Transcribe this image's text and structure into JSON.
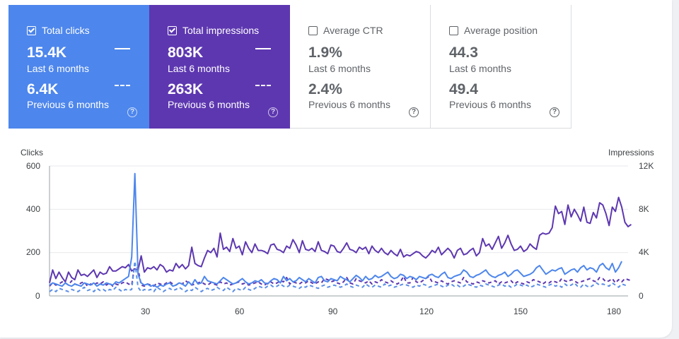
{
  "cards": [
    {
      "label": "Total clicks",
      "checked": true,
      "current": "15.4K",
      "current_period": "Last 6 months",
      "previous": "6.4K",
      "previous_period": "Previous 6 months",
      "help": "?"
    },
    {
      "label": "Total impressions",
      "checked": true,
      "current": "803K",
      "current_period": "Last 6 months",
      "previous": "263K",
      "previous_period": "Previous 6 months",
      "help": "?"
    },
    {
      "label": "Average CTR",
      "checked": false,
      "current": "1.9%",
      "current_period": "Last 6 months",
      "previous": "2.4%",
      "previous_period": "Previous 6 months",
      "help": "?"
    },
    {
      "label": "Average position",
      "checked": false,
      "current": "44.3",
      "current_period": "Last 6 months",
      "previous": "49.4",
      "previous_period": "Previous 6 months",
      "help": "?"
    }
  ],
  "colors": {
    "clicks": "#4d86ec",
    "clicks_prev": "#5b8ee6",
    "impressions": "#5d37b0",
    "impressions_prev": "#5d37b0"
  },
  "chart_data": {
    "type": "line",
    "ylabel_left": "Clicks",
    "ylabel_right": "Impressions",
    "ylim_left": [
      0,
      600
    ],
    "ylim_right": [
      0,
      12000
    ],
    "yticks_left": [
      "0",
      "200",
      "400",
      "600"
    ],
    "yticks_right": [
      "0",
      "4K",
      "8K",
      "12K"
    ],
    "xlim": [
      1,
      184
    ],
    "xticks": [
      "30",
      "60",
      "90",
      "120",
      "150",
      "180"
    ],
    "grid": true,
    "series": [
      {
        "key": "impressions",
        "axis": "right",
        "dashed": false,
        "values": [
          1200,
          2400,
          1600,
          2200,
          1700,
          1300,
          2200,
          1700,
          1500,
          2400,
          1900,
          2000,
          1800,
          2100,
          2400,
          1700,
          2200,
          2000,
          2100,
          2700,
          2300,
          2300,
          2500,
          2700,
          2600,
          2900,
          2300,
          2500,
          2400,
          3700,
          2200,
          2600,
          2500,
          2700,
          2400,
          2900,
          2700,
          2200,
          2400,
          2300,
          3000,
          2600,
          2900,
          2500,
          2800,
          4500,
          3000,
          2800,
          2700,
          3500,
          4200,
          4000,
          4400,
          3600,
          5800,
          4300,
          4500,
          4100,
          5300,
          4400,
          4600,
          3800,
          5000,
          4400,
          4000,
          4800,
          4200,
          4200,
          4100,
          3900,
          4700,
          4800,
          4300,
          4200,
          4000,
          4600,
          4400,
          5200,
          4700,
          4000,
          5100,
          4300,
          4200,
          4400,
          4100,
          5000,
          4200,
          4100,
          3900,
          4700,
          4600,
          4100,
          4000,
          4400,
          4900,
          4300,
          4200,
          4000,
          4500,
          4300,
          4500,
          3900,
          4600,
          4200,
          4000,
          4400,
          4000,
          3800,
          4200,
          3900,
          3700,
          4300,
          3600,
          3800,
          3700,
          3900,
          4100,
          4000,
          3700,
          3500,
          3800,
          4200,
          4000,
          4500,
          3800,
          4100,
          4400,
          4100,
          3500,
          4200,
          4400,
          3800,
          3900,
          4200,
          4400,
          3700,
          4000,
          5300,
          4600,
          4800,
          4300,
          4900,
          5500,
          4400,
          4900,
          5600,
          4800,
          4200,
          4300,
          4600,
          4100,
          4300,
          4800,
          4500,
          4300,
          5600,
          5800,
          5700,
          5800,
          6300,
          8300,
          7600,
          7800,
          6600,
          8400,
          7300,
          8000,
          7500,
          6900,
          8200,
          6800,
          6700,
          7700,
          7200,
          8600,
          8400,
          7600,
          6500,
          8200,
          7800,
          9100,
          8200,
          6800,
          6400,
          6600
        ]
      },
      {
        "key": "impressions_prev",
        "axis": "right",
        "dashed": true,
        "values": [
          900,
          1200,
          1000,
          1100,
          1300,
          1200,
          1000,
          1400,
          1100,
          1000,
          1200,
          1300,
          900,
          1100,
          1000,
          1200,
          1100,
          1300,
          1000,
          1200,
          900,
          1100,
          1000,
          1200,
          1300,
          1100,
          1000,
          3000,
          2500,
          1000,
          900,
          1100,
          1000,
          900,
          1200,
          1100,
          1000,
          1200,
          1300,
          1100,
          1000,
          1200,
          1100,
          1400,
          1200,
          1000,
          1100,
          1200,
          1300,
          1100,
          1000,
          1200,
          1100,
          1000,
          1300,
          1100,
          1200,
          1000,
          1100,
          1200,
          1300,
          1100,
          1200,
          1000,
          1100,
          1200,
          1300,
          1100,
          1000,
          1200,
          1300,
          1100,
          1200,
          1400,
          1300,
          1700,
          1100,
          1300,
          1200,
          1100,
          1300,
          1200,
          1400,
          1200,
          1100,
          1300,
          1200,
          1600,
          1500,
          1300,
          1400,
          1200,
          1100,
          1300,
          1700,
          1200,
          1100,
          1600,
          1400,
          1300,
          1200,
          1400,
          1100,
          1300,
          1200,
          1500,
          1300,
          1200,
          1400,
          1200,
          1100,
          1300,
          1800,
          1200,
          1200,
          1700,
          1300,
          1200,
          1400,
          1600,
          1800,
          1300,
          1300,
          1200,
          1400,
          1200,
          1100,
          1300,
          1400,
          1300,
          1200,
          1700,
          1300,
          1200,
          1100,
          1300,
          1200,
          1400,
          1300,
          1200,
          1300,
          1400,
          1100,
          1300,
          1200,
          1300,
          1400,
          1100,
          1300,
          1200,
          1100,
          1300,
          1200,
          1500,
          1400,
          1300,
          1100,
          1300,
          1200,
          1400,
          1300,
          1200,
          1600,
          1400,
          1300,
          1500,
          1400,
          1200,
          1300,
          1400,
          1500,
          1600,
          1400,
          1300,
          1700,
          1600,
          1300,
          1400,
          1600,
          1200,
          1500,
          1300,
          1600,
          1500,
          1400
        ]
      },
      {
        "key": "clicks_prev",
        "axis": "left",
        "dashed": true,
        "values": [
          20,
          30,
          20,
          35,
          30,
          25,
          20,
          30,
          25,
          20,
          30,
          40,
          25,
          30,
          20,
          35,
          25,
          30,
          20,
          30,
          25,
          40,
          30,
          20,
          30,
          25,
          30,
          160,
          40,
          20,
          30,
          25,
          30,
          20,
          40,
          30,
          20,
          30,
          35,
          25,
          30,
          40,
          30,
          20,
          30,
          25,
          40,
          30,
          20,
          30,
          35,
          25,
          30,
          40,
          30,
          25,
          40,
          30,
          20,
          35,
          30,
          25,
          40,
          30,
          25,
          35,
          45,
          40,
          35,
          45,
          50,
          40,
          45,
          55,
          45,
          40,
          50,
          45,
          40,
          35,
          45,
          40,
          50,
          45,
          40,
          35,
          45,
          50,
          40,
          45,
          50,
          45,
          40,
          45,
          55,
          45,
          40,
          50,
          45,
          40,
          55,
          45,
          40,
          50,
          45,
          40,
          55,
          45,
          50,
          40,
          45,
          50,
          55,
          50,
          45,
          40,
          50,
          45,
          55,
          50,
          40,
          45,
          50,
          55,
          45,
          40,
          50,
          55,
          45,
          50,
          40,
          45,
          55,
          50,
          45,
          40,
          50,
          45,
          55,
          50,
          45,
          40,
          50,
          55,
          45,
          50,
          40,
          45,
          55,
          50,
          45,
          50,
          40,
          45,
          55,
          50,
          45,
          40,
          50,
          55,
          45,
          50,
          40,
          55,
          45,
          50,
          60,
          45,
          40,
          55,
          45,
          40,
          50,
          60,
          50,
          55,
          50,
          45,
          60,
          50,
          40,
          55,
          50,
          45
        ]
      },
      {
        "key": "clicks",
        "axis": "left",
        "dashed": false,
        "values": [
          50,
          60,
          55,
          50,
          45,
          60,
          50,
          45,
          55,
          50,
          45,
          60,
          55,
          50,
          60,
          45,
          55,
          50,
          60,
          55,
          50,
          65,
          60,
          70,
          80,
          90,
          180,
          565,
          100,
          60,
          50,
          55,
          45,
          50,
          40,
          50,
          45,
          55,
          60,
          45,
          50,
          60,
          55,
          45,
          65,
          50,
          75,
          55,
          60,
          90,
          70,
          65,
          60,
          55,
          70,
          85,
          75,
          65,
          55,
          60,
          70,
          80,
          65,
          55,
          60,
          70,
          65,
          75,
          60,
          55,
          70,
          80,
          75,
          60,
          90,
          70,
          80,
          65,
          70,
          85,
          75,
          65,
          80,
          70,
          60,
          85,
          90,
          70,
          65,
          80,
          75,
          70,
          90,
          80,
          75,
          65,
          80,
          95,
          85,
          70,
          90,
          75,
          80,
          95,
          85,
          90,
          100,
          110,
          90,
          80,
          85,
          100,
          95,
          80,
          90,
          85,
          75,
          90,
          85,
          80,
          95,
          100,
          90,
          85,
          100,
          110,
          85,
          80,
          90,
          95,
          100,
          120,
          110,
          90,
          85,
          95,
          100,
          110,
          120,
          100,
          90,
          85,
          95,
          100,
          110,
          90,
          100,
          115,
          120,
          105,
          90,
          95,
          100,
          110,
          130,
          140,
          120,
          100,
          110,
          120,
          115,
          125,
          130,
          100,
          110,
          120,
          125,
          110,
          130,
          140,
          120,
          130,
          125,
          110,
          140,
          150,
          130,
          120,
          150,
          110,
          130,
          160
        ]
      }
    ]
  }
}
